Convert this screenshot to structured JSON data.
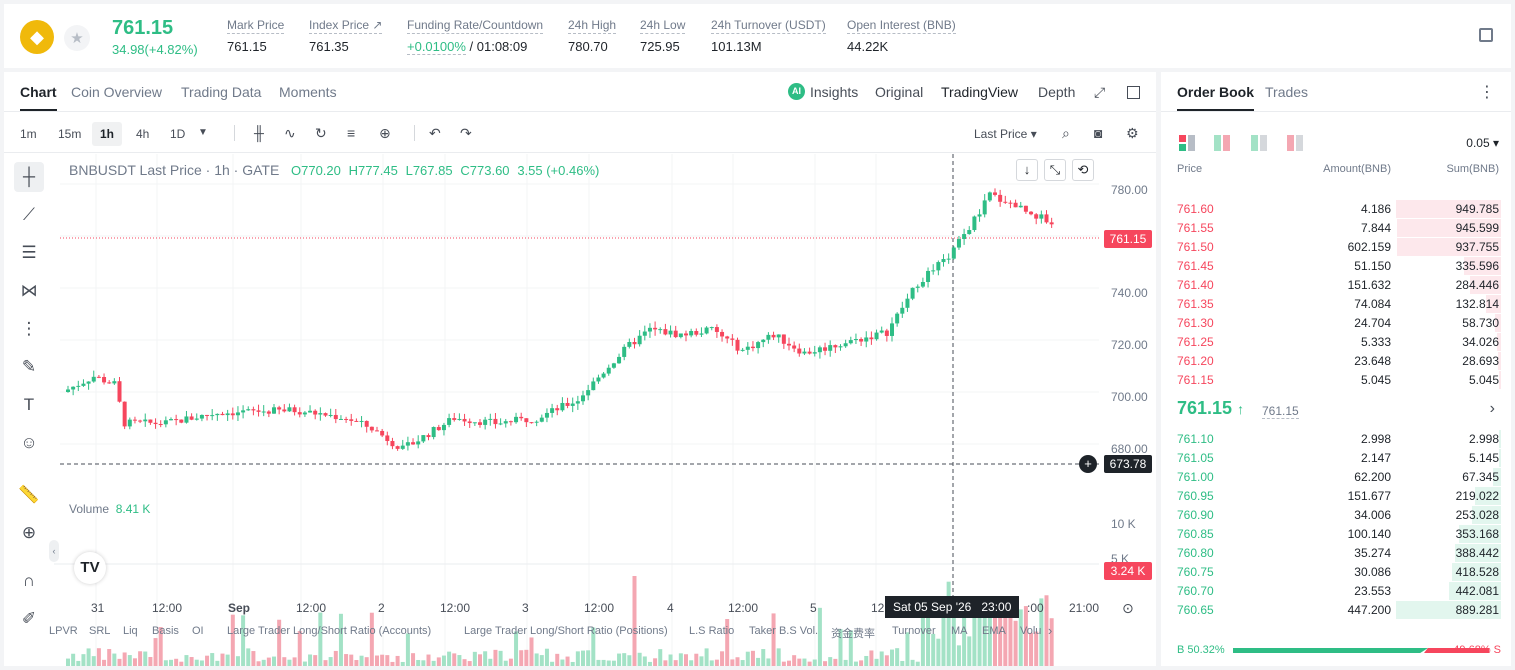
{
  "header": {
    "price": "761.15",
    "change": "34.98(+4.82%)",
    "stats": [
      {
        "label": "Mark Price",
        "value": "761.15"
      },
      {
        "label": "Index Price ↗",
        "value": "761.35"
      },
      {
        "label": "Funding Rate/Countdown",
        "value_green": "+0.0100%",
        "value": " / 01:08:09"
      },
      {
        "label": "24h High",
        "value": "780.70"
      },
      {
        "label": "24h Low",
        "value": "725.95"
      },
      {
        "label": "24h Turnover (USDT)",
        "value": "101.13M"
      },
      {
        "label": "Open Interest (BNB)",
        "value": "44.22K"
      }
    ]
  },
  "chart_tabs": [
    "Chart",
    "Coin Overview",
    "Trading Data",
    "Moments"
  ],
  "view_tabs": [
    "Insights",
    "Original",
    "TradingView",
    "Depth"
  ],
  "timeframes": [
    "1m",
    "15m",
    "1h",
    "4h",
    "1D"
  ],
  "price_type": "Last Price",
  "legend": {
    "symbol": "BNBUSDT Last Price · 1h · GATE",
    "o": "O770.20",
    "h": "H777.45",
    "l": "L767.85",
    "c": "C773.60",
    "chg": "3.55 (+0.46%)"
  },
  "volume_legend": {
    "label": "Volume",
    "value": "8.41 K"
  },
  "y_axis": [
    "780.00",
    "740.00",
    "720.00",
    "700.00",
    "680.00"
  ],
  "vol_axis": [
    "10 K",
    "5 K"
  ],
  "price_tags": {
    "last": "761.15",
    "cross": "673.78",
    "vol": "3.24 K"
  },
  "x_axis": [
    "31",
    "12:00",
    "Sep",
    "12:00",
    "2",
    "12:00",
    "3",
    "12:00",
    "4",
    "12:00",
    "5",
    "12",
    "21:00"
  ],
  "x_axis_partial": ":00",
  "crosshair_time": "Sat 05 Sep '26   23:00",
  "indicators": [
    "LPVR",
    "SRL",
    "Liq",
    "Basis",
    "OI",
    "Large Trader Long/Short Ratio (Accounts)",
    "Large Trader Long/Short Ratio (Positions)",
    "L.S Ratio",
    "Taker B.S Vol.",
    "资金费率",
    "Turnover",
    "MA",
    "EMA",
    "Volu"
  ],
  "orderbook": {
    "tabs": [
      "Order Book",
      "Trades"
    ],
    "tick": "0.05",
    "headers": [
      "Price",
      "Amount(BNB)",
      "Sum(BNB)"
    ],
    "asks": [
      {
        "price": "761.60",
        "amount": "4.186",
        "sum": "949.785",
        "depth": 1.0
      },
      {
        "price": "761.55",
        "amount": "7.844",
        "sum": "945.599",
        "depth": 0.995
      },
      {
        "price": "761.50",
        "amount": "602.159",
        "sum": "937.755",
        "depth": 0.99
      },
      {
        "price": "761.45",
        "amount": "51.150",
        "sum": "335.596",
        "depth": 0.35
      },
      {
        "price": "761.40",
        "amount": "151.632",
        "sum": "284.446",
        "depth": 0.3
      },
      {
        "price": "761.35",
        "amount": "74.084",
        "sum": "132.814",
        "depth": 0.14
      },
      {
        "price": "761.30",
        "amount": "24.704",
        "sum": "58.730",
        "depth": 0.06
      },
      {
        "price": "761.25",
        "amount": "5.333",
        "sum": "34.026",
        "depth": 0.036
      },
      {
        "price": "761.20",
        "amount": "23.648",
        "sum": "28.693",
        "depth": 0.03
      },
      {
        "price": "761.15",
        "amount": "5.045",
        "sum": "5.045",
        "depth": 0.005
      }
    ],
    "mid_price": "761.15",
    "mid_arrow": "↑",
    "mid_mark": "761.15",
    "bids": [
      {
        "price": "761.10",
        "amount": "2.998",
        "sum": "2.998",
        "depth": 0.003
      },
      {
        "price": "761.05",
        "amount": "2.147",
        "sum": "5.145",
        "depth": 0.006
      },
      {
        "price": "761.00",
        "amount": "62.200",
        "sum": "67.345",
        "depth": 0.076
      },
      {
        "price": "760.95",
        "amount": "151.677",
        "sum": "219.022",
        "depth": 0.25
      },
      {
        "price": "760.90",
        "amount": "34.006",
        "sum": "253.028",
        "depth": 0.28
      },
      {
        "price": "760.85",
        "amount": "100.140",
        "sum": "353.168",
        "depth": 0.4
      },
      {
        "price": "760.80",
        "amount": "35.274",
        "sum": "388.442",
        "depth": 0.44
      },
      {
        "price": "760.75",
        "amount": "30.086",
        "sum": "418.528",
        "depth": 0.47
      },
      {
        "price": "760.70",
        "amount": "23.553",
        "sum": "442.081",
        "depth": 0.5
      },
      {
        "price": "760.65",
        "amount": "447.200",
        "sum": "889.281",
        "depth": 1.0
      }
    ],
    "buy_ratio": "B 50.32%",
    "sell_ratio": "49.68% S",
    "buy_ratio_value": 50.32
  },
  "colors": {
    "up": "#2ebd85",
    "down": "#f6465d",
    "up_vol": "#a3e2c6",
    "down_vol": "#f4a7b2"
  }
}
